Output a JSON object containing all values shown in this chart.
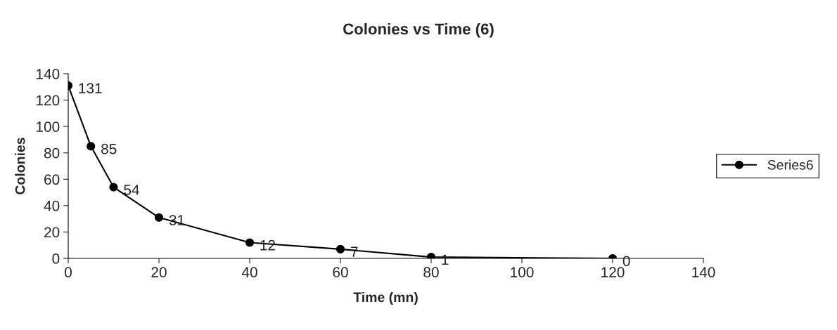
{
  "chart_data": {
    "type": "line",
    "title": "Colonies vs Time (6)",
    "xlabel": "Time (mn)",
    "ylabel": "Colonies",
    "x": [
      0,
      5,
      10,
      20,
      40,
      60,
      80,
      120
    ],
    "series": [
      {
        "name": "Series6",
        "color": "#000000",
        "values": [
          131,
          85,
          54,
          31,
          12,
          7,
          1,
          0
        ]
      }
    ],
    "xlim": [
      0,
      140
    ],
    "xticks": [
      0,
      20,
      40,
      60,
      80,
      100,
      120,
      140
    ],
    "ylim": [
      0,
      140
    ],
    "yticks": [
      0,
      20,
      40,
      60,
      80,
      100,
      120,
      140
    ],
    "data_labels": true,
    "grid": false,
    "legend": "right",
    "marker": "circle",
    "line_style": "solid"
  }
}
